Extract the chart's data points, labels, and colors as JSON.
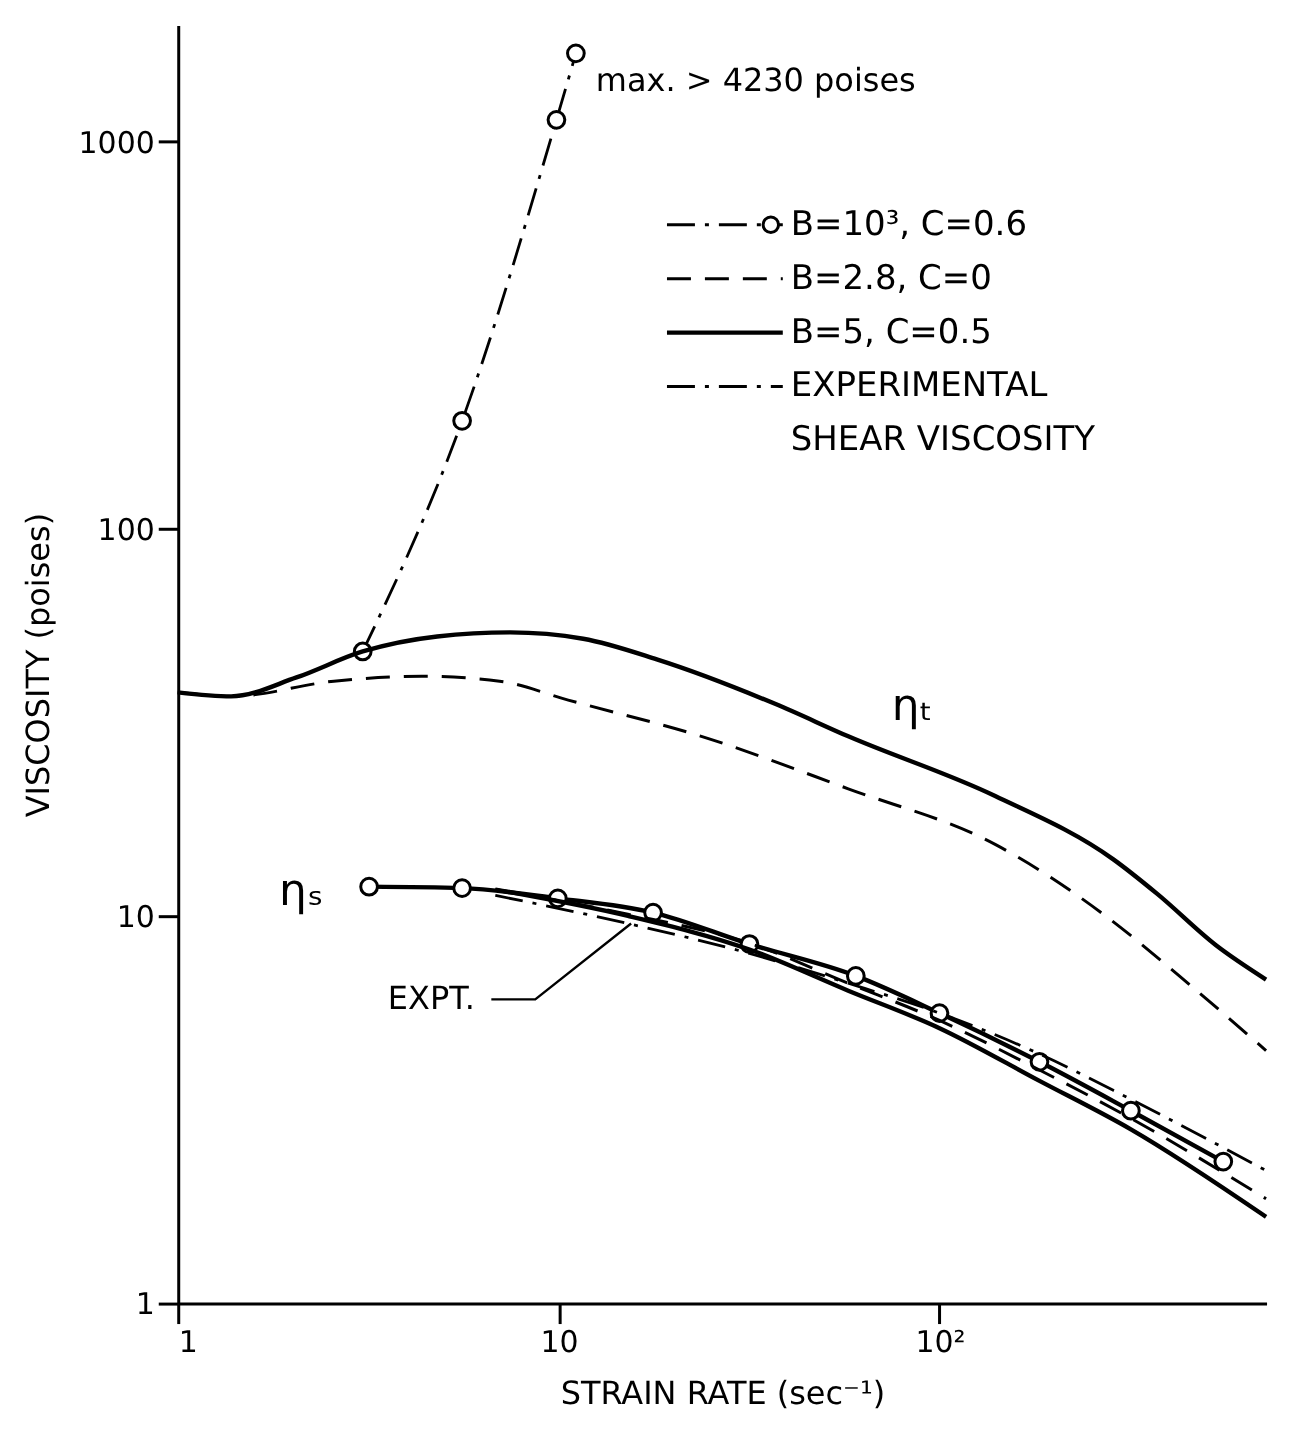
{
  "chart_data": {
    "type": "line",
    "xlabel": "STRAIN RATE (sec⁻¹)",
    "ylabel": "VISCOSITY (poises)",
    "log": "xy",
    "xlim": [
      1,
      720
    ],
    "ylim": [
      1,
      2000
    ],
    "xticks": [
      1,
      10,
      {
        "value": 100,
        "label": "10²"
      }
    ],
    "yticks": [
      1,
      10,
      100,
      1000
    ],
    "grid": false,
    "legend": "top right",
    "series": [
      {
        "name": "B=10³, C=0.6",
        "color": "#000000",
        "line_style": "dashdot",
        "marker": "circle",
        "x": [
          3.06,
          5.58,
          9.87,
          11.1
        ],
        "values": [
          48.2,
          190,
          1138,
          1690
        ]
      },
      {
        "color": "#000000",
        "line_style": "solid",
        "marker": "circle",
        "x": [
          3.18,
          5.58,
          9.95,
          17.7,
          31.7,
          60.3,
          100,
          183,
          318,
          556
        ],
        "values": [
          11.9,
          11.8,
          11.1,
          10.2,
          8.46,
          7.0,
          5.61,
          4.2,
          3.14,
          2.32
        ]
      },
      {
        "name": "B=2.8, C=0",
        "color": "#000000",
        "line_style": "dashed",
        "marker": "none",
        "x": [
          1,
          1.38,
          2.57,
          4.37,
          7.0,
          10.6,
          23.7,
          57.6,
          140,
          273,
          426,
          720
        ],
        "values": [
          37.8,
          36.9,
          40.4,
          41.6,
          40.4,
          36.1,
          29.1,
          21.3,
          15.3,
          10,
          7.0,
          4.49
        ]
      },
      {
        "color": "#000000",
        "line_style": "dashed",
        "marker": "none",
        "x": [
          6.82,
          15.2,
          31.7,
          57.6,
          100,
          183,
          318,
          720
        ],
        "values": [
          11.7,
          10.1,
          8.5,
          6.7,
          5.37,
          4.0,
          3.0,
          1.86
        ]
      },
      {
        "name": "B=5, C=0.5",
        "color": "#000000",
        "line_style": "solid",
        "marker": "none",
        "x": [
          1,
          1.38,
          2.05,
          3.06,
          4.8,
          7.46,
          11.6,
          18.1,
          37,
          57.6,
          140,
          286,
          373,
          532,
          720
        ],
        "values": [
          37.8,
          36.9,
          41.3,
          48.2,
          52.7,
          54,
          52,
          46,
          35.3,
          29.1,
          20.4,
          14.0,
          11.4,
          8.4,
          6.85
        ]
      },
      {
        "color": "#000000",
        "line_style": "solid",
        "marker": "none",
        "x": [
          6.82,
          15.2,
          31.7,
          57.6,
          100,
          183,
          318,
          720
        ],
        "values": [
          11.7,
          10,
          8.19,
          6.41,
          5.13,
          3.75,
          2.81,
          1.67
        ]
      },
      {
        "name": "EXPERIMENTAL\nSHEAR VISCOSITY",
        "color": "#000000",
        "line_style": "dashdot",
        "marker": "none",
        "x": [
          6.82,
          15.2,
          31.7,
          57.6,
          100,
          183,
          318,
          720
        ],
        "values": [
          11.3,
          9.56,
          8.0,
          6.7,
          5.61,
          4.4,
          3.36,
          2.2
        ]
      }
    ],
    "annotations": [
      {
        "text": "max. > 4230 poises",
        "x": 11.1,
        "y": 1690
      },
      {
        "text": "ηₜ",
        "x": 77,
        "y": 25.6
      },
      {
        "text": "ηₛ",
        "x": 3.18,
        "y": 11.9
      },
      {
        "text": "EXPT.",
        "x": 15.5,
        "y": 9.56
      }
    ]
  }
}
